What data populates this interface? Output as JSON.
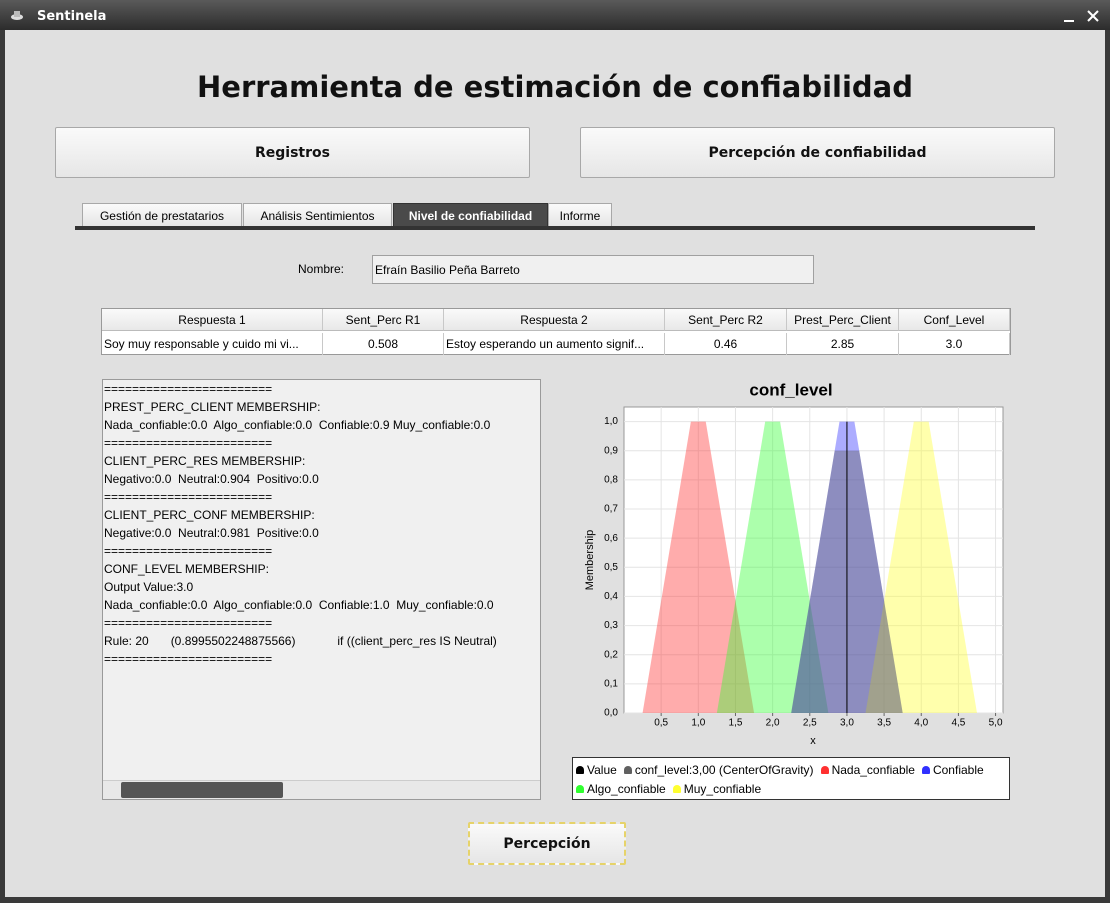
{
  "window": {
    "title": "Sentinela"
  },
  "header": {
    "title": "Herramienta de estimación de confiabilidad"
  },
  "buttons": {
    "registros": "Registros",
    "percepcion_conf": "Percepción de confiabilidad",
    "percepcion": "Percepción"
  },
  "tabs": [
    "Gestión de prestatarios",
    "Análisis Sentimientos",
    "Nivel de confiabilidad",
    "Informe"
  ],
  "form": {
    "label": "Nombre:",
    "value": "Efraín Basilio Peña Barreto"
  },
  "table": {
    "headers": [
      "Respuesta 1",
      "Sent_Perc R1",
      "Respuesta 2",
      "Sent_Perc R2",
      "Prest_Perc_Client",
      "Conf_Level"
    ],
    "rows": [
      [
        "Soy muy responsable y cuido mi vi...",
        "0.508",
        "Estoy esperando un aumento signif...",
        "0.46",
        "2.85",
        "3.0"
      ]
    ]
  },
  "output_lines": [
    "========================",
    "PREST_PERC_CLIENT MEMBERSHIP:",
    "Nada_confiable:0.0  Algo_confiable:0.0  Confiable:0.9 Muy_confiable:0.0",
    "========================",
    "CLIENT_PERC_RES MEMBERSHIP:",
    "Negativo:0.0  Neutral:0.904  Positivo:0.0",
    "========================",
    "CLIENT_PERC_CONF MEMBERSHIP:",
    "Negative:0.0  Neutral:0.981  Positive:0.0",
    "========================",
    "CONF_LEVEL MEMBERSHIP:",
    "Output Value:3.0",
    "Nada_confiable:0.0  Algo_confiable:0.0  Confiable:1.0  Muy_confiable:0.0",
    "========================",
    "Rule: 20\t(0.8995502248875566)\t\tif ((client_perc_res IS Neutral)",
    "========================"
  ],
  "chart_data": {
    "type": "area",
    "title": "conf_level",
    "x_label": "x",
    "y_label": "Membership",
    "xlim": [
      0,
      5.1
    ],
    "ylim": [
      0,
      1.05
    ],
    "grid": true,
    "xticks": [
      {
        "value": 0.5,
        "label": "0,5"
      },
      {
        "value": 1,
        "label": "1,0"
      },
      {
        "value": 1.5,
        "label": "1,5"
      },
      {
        "value": 2,
        "label": "2,0"
      },
      {
        "value": 2.5,
        "label": "2,5"
      },
      {
        "value": 3,
        "label": "3,0"
      },
      {
        "value": 3.5,
        "label": "3,5"
      },
      {
        "value": 4,
        "label": "4,0"
      },
      {
        "value": 4.5,
        "label": "4,5"
      },
      {
        "value": 5,
        "label": "5,0"
      }
    ],
    "yticks": [
      {
        "value": 0,
        "label": "0,0"
      },
      {
        "value": 0.1,
        "label": "0,1"
      },
      {
        "value": 0.2,
        "label": "0,2"
      },
      {
        "value": 0.3,
        "label": "0,3"
      },
      {
        "value": 0.4,
        "label": "0,4"
      },
      {
        "value": 0.5,
        "label": "0,5"
      },
      {
        "value": 0.6,
        "label": "0,6"
      },
      {
        "value": 0.7,
        "label": "0,7"
      },
      {
        "value": 0.8,
        "label": "0,8"
      },
      {
        "value": 0.9,
        "label": "0,9"
      },
      {
        "value": 1,
        "label": "1,0"
      }
    ],
    "series": [
      {
        "name": "Value",
        "color": "#000000",
        "style": "line",
        "x": [
          3,
          3
        ],
        "values": [
          0,
          1
        ]
      },
      {
        "name": "conf_level:3,00 (CenterOfGravity)",
        "color": "#606060",
        "style": "area",
        "x": [
          2.25,
          2.835,
          3.165,
          3.75
        ],
        "values": [
          0,
          0.9,
          0.9,
          0
        ]
      },
      {
        "name": "Nada_confiable",
        "color": "#ff3030",
        "style": "area",
        "x": [
          0.25,
          0.9,
          1.1,
          1.75
        ],
        "values": [
          0,
          1,
          1,
          0
        ]
      },
      {
        "name": "Confiable",
        "color": "#3030ff",
        "style": "area",
        "x": [
          2.25,
          2.9,
          3.1,
          3.75
        ],
        "values": [
          0,
          1,
          1,
          0
        ]
      },
      {
        "name": "Algo_confiable",
        "color": "#30ff30",
        "style": "area",
        "x": [
          1.25,
          1.9,
          2.1,
          2.75
        ],
        "values": [
          0,
          1,
          1,
          0
        ]
      },
      {
        "name": "Muy_confiable",
        "color": "#ffff30",
        "style": "area",
        "x": [
          3.25,
          3.9,
          4.1,
          4.75
        ],
        "values": [
          0,
          1,
          1,
          0
        ]
      }
    ]
  }
}
